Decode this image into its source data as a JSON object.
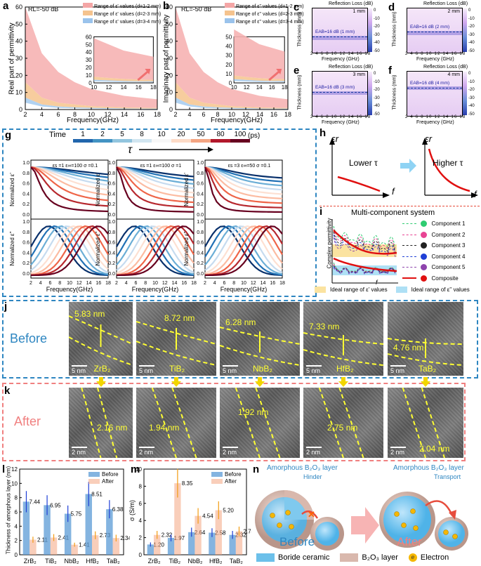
{
  "panels": {
    "a": {
      "label": "a",
      "rl": "RL=-50 dB",
      "legend": [
        "Range of ε' values (d=1-2 mm)",
        "Range of ε' values (d=2-3 mm)",
        "Range of ε' values (d=3-4 mm)"
      ],
      "ylabel": "Real part of permittivity",
      "xlabel": "Frequency(GHz)"
    },
    "b": {
      "label": "b",
      "rl": "RL=-50 dB",
      "legend": [
        "Range of ε'' values (d=1-2 mm)",
        "Range of ε'' values (d=2-3 mm)",
        "Range of ε'' values (d=3-4 mm)"
      ],
      "ylabel": "Imaginary part of permittivity",
      "xlabel": "Frequency(GHz)"
    },
    "c": {
      "label": "c",
      "title": "Reflection Loss (dB)",
      "thick": "1 mm",
      "eab": "EAB=16 dB (1 mm)"
    },
    "d": {
      "label": "d",
      "title": "Reflection Loss (dB)",
      "thick": "2 mm",
      "eab": "EAB=16 dB (2 mm)"
    },
    "e": {
      "label": "e",
      "title": "Reflection Loss (dB)",
      "thick": "3 mm",
      "eab": "EAB=16 dB (3 mm)"
    },
    "f": {
      "label": "f",
      "title": "Reflection Loss (dB)",
      "thick": "4 mm",
      "eab": "EAB=16 dB (4 mm)"
    },
    "cmap_ylabel": "Thickness (mm)",
    "cmap_xlabel": "Frequency (GHz)",
    "cmap_ticks": [
      "0",
      "-10",
      "-20",
      "-30",
      "-40",
      "-50"
    ],
    "g": {
      "label": "g",
      "time_label": "Time",
      "time_values": [
        "1",
        "2",
        "5",
        "8",
        "10",
        "20",
        "50",
        "80",
        "100"
      ],
      "unit": "(ps)",
      "tau": "τ",
      "params": [
        "εs =1 ε∞=100 σ =0.1",
        "εs =1 ε∞=100 σ =1",
        "εs =3 ε∞=50 σ =0.1"
      ],
      "ylabel_top": "Normalized ε'",
      "ylabel_bottom": "Normalized ε''",
      "xlabel": "Frequency(GHz)"
    },
    "h": {
      "label": "h",
      "lower": "Lower τ",
      "higher": "Higher τ",
      "axis_y": "εr",
      "axis_x": "f"
    },
    "i": {
      "label": "i",
      "title": "Multi-component system",
      "ylabel": "Complex permittivity",
      "xlabel": "f",
      "components": [
        "Component 1",
        "Component 2",
        "Component 3",
        "Component 4",
        "Component 5",
        "Composite"
      ],
      "ideal_real": "Ideal range of ε' values",
      "ideal_imag": "Ideal range of ε'' values"
    },
    "j": {
      "label": "j",
      "row": "Before",
      "images": [
        {
          "thick": "5.83 nm",
          "mat": "ZrB₂",
          "scale": "5 nm"
        },
        {
          "thick": "8.72 nm",
          "mat": "TiB₂",
          "scale": "5 nm"
        },
        {
          "thick": "6.28 nm",
          "mat": "NbB₂",
          "scale": "5 nm"
        },
        {
          "thick": "7.33 nm",
          "mat": "HfB₂",
          "scale": "5 nm"
        },
        {
          "thick": "4.76 nm",
          "mat": "TaB₂",
          "scale": "5 nm"
        }
      ]
    },
    "k": {
      "label": "k",
      "row": "After",
      "images": [
        {
          "thick": "2.16 nm",
          "scale": "2 nm"
        },
        {
          "thick": "1.94 nm",
          "scale": "2 nm"
        },
        {
          "thick": "1.92 nm",
          "scale": "2 nm"
        },
        {
          "thick": "2.75 nm",
          "scale": "2 nm"
        },
        {
          "thick": "2.04 nm",
          "scale": "2 nm"
        }
      ]
    },
    "l": {
      "label": "l",
      "ylabel": "Thickness of amorphous layer (nm)",
      "legend": [
        "Before",
        "After"
      ]
    },
    "m": {
      "label": "m",
      "ylabel": "σ (S/m)",
      "legend": [
        "Before",
        "After"
      ]
    },
    "n": {
      "label": "n",
      "layer1": "Amorphous B₂O₃ layer",
      "hinder": "Hinder",
      "layer2": "Amorphous B₂O₃ layer",
      "transport": "Transport",
      "before": "Before",
      "after": "After",
      "legend": [
        "Boride ceramic",
        "B₂O₃ layer",
        "Electron"
      ]
    }
  },
  "chart_data": [
    {
      "type": "bar",
      "id": "l",
      "categories": [
        "ZrB₂",
        "TiB₂",
        "NbB₂",
        "HfB₂",
        "TaB₂"
      ],
      "ylim": [
        0,
        12
      ],
      "yticks": [
        0,
        2,
        4,
        6,
        8,
        10,
        12
      ],
      "series": [
        {
          "name": "Before",
          "values": [
            7.44,
            6.95,
            5.75,
            8.51,
            6.38
          ]
        },
        {
          "name": "After",
          "values": [
            2.11,
            2.41,
            1.41,
            2.73,
            2.34
          ]
        }
      ],
      "ylabel": "Thickness of amorphous layer (nm)"
    },
    {
      "type": "bar",
      "id": "m",
      "categories": [
        "ZrB₂",
        "TiB₂",
        "NbB₂",
        "HfB₂",
        "TaB₂"
      ],
      "ylim": [
        0,
        10
      ],
      "yticks": [
        0,
        2,
        4,
        6,
        8,
        10
      ],
      "series": [
        {
          "name": "Before",
          "values": [
            1.2,
            1.97,
            2.64,
            2.58,
            2.32
          ]
        },
        {
          "name": "After",
          "values": [
            2.32,
            8.35,
            4.54,
            5.2,
            2.74
          ]
        }
      ],
      "ylabel": "σ (S/m)"
    },
    {
      "type": "area",
      "id": "a",
      "x": [
        2,
        4,
        6,
        8,
        10,
        12,
        14,
        16,
        18
      ],
      "xlim": [
        2,
        18
      ],
      "ylim": [
        0,
        60
      ],
      "yticks": [
        0,
        10,
        20,
        30,
        40,
        50,
        60
      ],
      "series": [
        {
          "name": "d=1-2 mm",
          "upper": [
            60,
            33,
            22,
            16,
            12,
            10,
            8,
            7,
            6
          ],
          "lower": [
            16,
            7,
            4,
            3,
            2,
            1.6,
            1.3,
            1.1,
            1
          ]
        },
        {
          "name": "d=2-3 mm",
          "upper": [
            16,
            7,
            4,
            3,
            2,
            1.6,
            1.3,
            1.1,
            1
          ],
          "lower": [
            7,
            3,
            1.8,
            1.3,
            1,
            0.8,
            0.6,
            0.5,
            0.5
          ]
        },
        {
          "name": "d=3-4 mm",
          "upper": [
            7,
            3,
            1.8,
            1.3,
            1,
            0.8,
            0.6,
            0.5,
            0.5
          ],
          "lower": [
            4,
            1.8,
            1,
            0.7,
            0.5,
            0.4,
            0.3,
            0.3,
            0.2
          ]
        }
      ],
      "inset": {
        "xlim": [
          10,
          18
        ],
        "ylim": [
          0,
          60
        ]
      }
    },
    {
      "type": "area",
      "id": "b",
      "x": [
        2,
        4,
        6,
        8,
        10,
        12,
        14,
        16,
        18
      ],
      "xlim": [
        2,
        18
      ],
      "ylim": [
        0,
        60
      ],
      "yticks": [
        0,
        10,
        20,
        30,
        40,
        50,
        60
      ],
      "series": [
        {
          "name": "d=1-2 mm",
          "upper": [
            60,
            33,
            22,
            16,
            12,
            10,
            8,
            7,
            6
          ],
          "lower": [
            16,
            7,
            4,
            3,
            2,
            1.6,
            1.3,
            1.1,
            1
          ]
        },
        {
          "name": "d=2-3 mm",
          "upper": [
            16,
            7,
            4,
            3,
            2,
            1.6,
            1.3,
            1.1,
            1
          ],
          "lower": [
            7,
            3,
            1.8,
            1.3,
            1,
            0.8,
            0.6,
            0.5,
            0.5
          ]
        },
        {
          "name": "d=3-4 mm",
          "upper": [
            7,
            3,
            1.8,
            1.3,
            1,
            0.8,
            0.6,
            0.5,
            0.5
          ],
          "lower": [
            4,
            1.8,
            1,
            0.7,
            0.5,
            0.4,
            0.3,
            0.3,
            0.2
          ]
        }
      ],
      "inset": {
        "xlim": [
          10,
          18
        ],
        "ylim": [
          0,
          50
        ]
      }
    }
  ],
  "colors": {
    "before": "#5b9bd5",
    "after": "#f4a582",
    "blue_dash": "#2e86c1",
    "pink_dash": "#e74c3c",
    "yellow": "#ffff33"
  }
}
